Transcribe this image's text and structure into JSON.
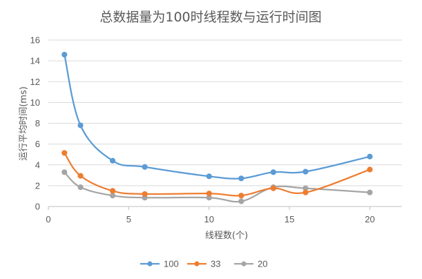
{
  "chart_data": {
    "type": "line",
    "title": "总数据量为100时线程数与运行时间图",
    "xlabel": "线程数(个)",
    "ylabel": "运行平均时间(ms)",
    "xlim": [
      0,
      22
    ],
    "ylim": [
      0,
      16
    ],
    "xticks": [
      0,
      5,
      10,
      15,
      20
    ],
    "yticks": [
      0,
      2,
      4,
      6,
      8,
      10,
      12,
      14,
      16
    ],
    "smooth": true,
    "grid": "horizontal",
    "legend_position": "bottom",
    "x": [
      1,
      2,
      4,
      6,
      10,
      12,
      14,
      16,
      20
    ],
    "series": [
      {
        "name": "100",
        "color": "#5b9bd5",
        "values": [
          14.6,
          7.8,
          4.4,
          3.8,
          2.9,
          2.7,
          3.3,
          3.35,
          4.8
        ]
      },
      {
        "name": "33",
        "color": "#ed7d31",
        "values": [
          5.15,
          2.95,
          1.5,
          1.2,
          1.25,
          1.05,
          1.75,
          1.35,
          3.55
        ]
      },
      {
        "name": "20",
        "color": "#a5a5a5",
        "values": [
          3.3,
          1.85,
          1.05,
          0.85,
          0.85,
          0.5,
          1.85,
          1.75,
          1.35
        ]
      }
    ]
  }
}
